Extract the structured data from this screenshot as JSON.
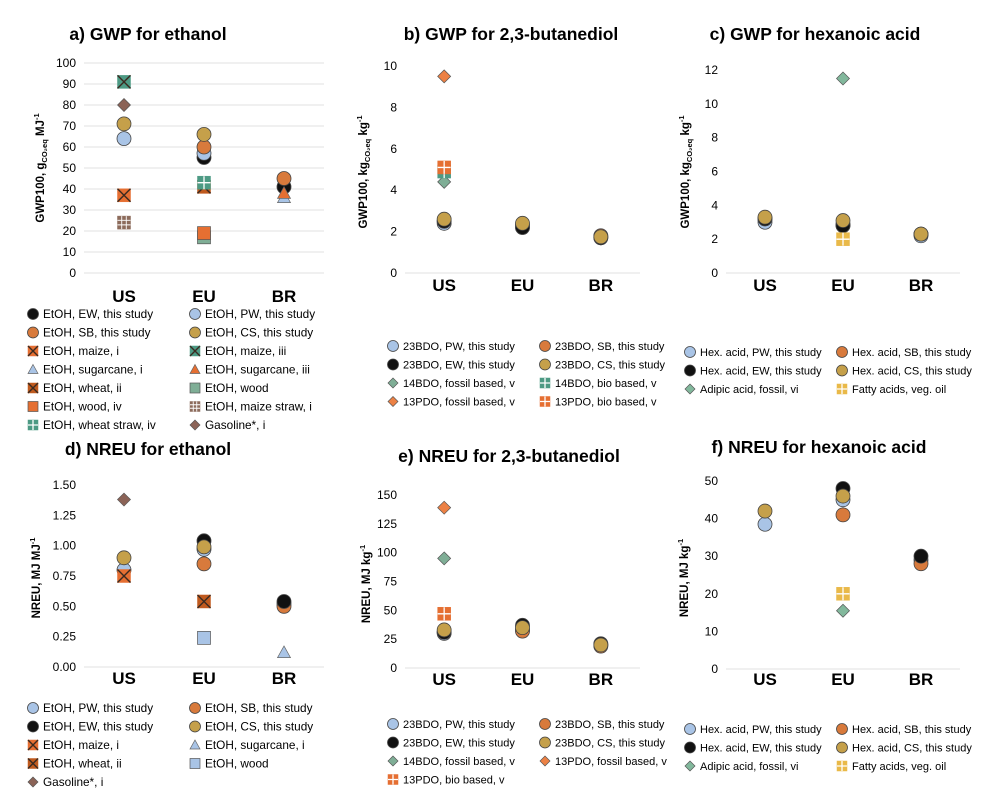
{
  "colors": {
    "EW": "#111111",
    "PW": "#a9c4e6",
    "SB": "#d87a3c",
    "CS": "#c5a04a",
    "orange": "#e56f32",
    "teal": "#4d9a84",
    "lightblue": "#a9c4e6",
    "brown": "#8c6b5b",
    "diamond_fossil": "#7fae96",
    "pdo_fossil": "#ec8145",
    "gasoline": "#8b6357",
    "adipic": "#82b89c",
    "fattyacid": "#e9b949"
  },
  "chart_data": [
    {
      "id": "a",
      "type": "scatter",
      "title": "a) GWP for ethanol",
      "ylabel_main": "GWP100, g",
      "ylabel_sub": "CO₂eq",
      "ylabel_unit": " MJ",
      "ylabel_sup": "-1",
      "categories": [
        "US",
        "EU",
        "BR"
      ],
      "ylim": [
        0,
        100
      ],
      "yticks": [
        0,
        10,
        20,
        30,
        40,
        50,
        60,
        70,
        80,
        90,
        100
      ],
      "tick_decimals": 0,
      "grid": true,
      "series": [
        {
          "name": "EtOH, EW, this study",
          "marker": "circle",
          "color": "#111111",
          "values": [
            null,
            55,
            41
          ]
        },
        {
          "name": "EtOH, PW, this study",
          "marker": "circle",
          "color": "#a9c4e6",
          "values": [
            64,
            57,
            null
          ]
        },
        {
          "name": "EtOH, SB, this study",
          "marker": "circle",
          "color": "#d87a3c",
          "values": [
            null,
            60,
            45
          ]
        },
        {
          "name": "EtOH, CS, this study",
          "marker": "circle",
          "color": "#c5a04a",
          "values": [
            71,
            66,
            null
          ]
        },
        {
          "name": "EtOH, maize, i",
          "marker": "xbox",
          "color": "#e56f32",
          "values": [
            37,
            null,
            null
          ]
        },
        {
          "name": "EtOH, maize, iii",
          "marker": "xbox",
          "color": "#4d9a84",
          "values": [
            91,
            null,
            null
          ]
        },
        {
          "name": "EtOH, sugarcane, i",
          "marker": "triangle",
          "color": "#a9c4e6",
          "values": [
            null,
            null,
            36
          ]
        },
        {
          "name": "EtOH, sugarcane, iii",
          "marker": "triangle",
          "color": "#e56f32",
          "values": [
            null,
            41,
            38
          ]
        },
        {
          "name": "EtOH, wheat, ii",
          "marker": "xbox",
          "color": "#c05a1e",
          "values": [
            null,
            41,
            null
          ]
        },
        {
          "name": "EtOH, wood",
          "marker": "square",
          "color": "#7fae96",
          "values": [
            null,
            17,
            null
          ]
        },
        {
          "name": "EtOH, wood, iv",
          "marker": "square",
          "color": "#e56f32",
          "values": [
            null,
            19,
            null
          ]
        },
        {
          "name": "EtOH, maize straw, i",
          "marker": "hash",
          "color": "#8c6b5b",
          "values": [
            24,
            null,
            null
          ]
        },
        {
          "name": "EtOH, wheat straw, iv",
          "marker": "plus",
          "color": "#4d9a84",
          "values": [
            null,
            43,
            null
          ]
        },
        {
          "name": "Gasoline*, i",
          "marker": "diamond",
          "color": "#8b6357",
          "values": [
            80,
            null,
            null
          ]
        }
      ],
      "legend_order": [
        0,
        1,
        2,
        3,
        4,
        5,
        6,
        7,
        8,
        9,
        10,
        11,
        12,
        13
      ]
    },
    {
      "id": "b",
      "type": "scatter",
      "title": "b) GWP for 2,3-butanediol",
      "ylabel_main": "GWP100, kg",
      "ylabel_sub": "CO₂eq",
      "ylabel_unit": " kg",
      "ylabel_sup": "-1",
      "categories": [
        "US",
        "EU",
        "BR"
      ],
      "ylim": [
        0,
        10
      ],
      "yticks": [
        0,
        2,
        4,
        6,
        8,
        10
      ],
      "tick_decimals": 0,
      "grid": false,
      "series": [
        {
          "name": "23BDO, PW, this study",
          "marker": "circle",
          "color": "#a9c4e6",
          "values": [
            2.4,
            2.2,
            1.7
          ]
        },
        {
          "name": "23BDO, SB, this study",
          "marker": "circle",
          "color": "#d87a3c",
          "values": [
            2.5,
            2.3,
            1.8
          ]
        },
        {
          "name": "23BDO, EW, this study",
          "marker": "circle",
          "color": "#111111",
          "values": [
            2.5,
            2.2,
            1.7
          ]
        },
        {
          "name": "23BDO, CS, this study",
          "marker": "circle",
          "color": "#c5a04a",
          "values": [
            2.6,
            2.4,
            1.75
          ]
        },
        {
          "name": "14BDO, fossil based, v",
          "marker": "diamond",
          "color": "#7fae96",
          "values": [
            4.4,
            null,
            null
          ]
        },
        {
          "name": "14BDO, bio based, v",
          "marker": "plus",
          "color": "#4d9a84",
          "values": [
            4.9,
            null,
            null
          ]
        },
        {
          "name": "13PDO, fossil based, v",
          "marker": "diamond",
          "color": "#ec8145",
          "values": [
            9.5,
            null,
            null
          ]
        },
        {
          "name": "13PDO, bio based, v",
          "marker": "plus",
          "color": "#e56f32",
          "values": [
            5.1,
            null,
            null
          ]
        }
      ],
      "legend_order": [
        0,
        1,
        2,
        3,
        4,
        5,
        6,
        7
      ]
    },
    {
      "id": "c",
      "type": "scatter",
      "title": "c) GWP for hexanoic acid",
      "ylabel_main": "GWP100, kg",
      "ylabel_sub": "CO₂eq",
      "ylabel_unit": " kg",
      "ylabel_sup": "-1",
      "categories": [
        "US",
        "EU",
        "BR"
      ],
      "ylim": [
        0,
        12
      ],
      "yticks": [
        0,
        2,
        4,
        6,
        8,
        10,
        12
      ],
      "tick_decimals": 0,
      "grid": false,
      "series": [
        {
          "name": "Hex. acid, PW, this study",
          "marker": "circle",
          "color": "#a9c4e6",
          "values": [
            3.0,
            2.8,
            2.2
          ]
        },
        {
          "name": "Hex. acid, SB, this study",
          "marker": "circle",
          "color": "#d87a3c",
          "values": [
            3.2,
            2.9,
            2.3
          ]
        },
        {
          "name": "Hex. acid, EW, this study",
          "marker": "circle",
          "color": "#111111",
          "values": [
            3.2,
            2.8,
            2.3
          ]
        },
        {
          "name": "Hex. acid, CS, this study",
          "marker": "circle",
          "color": "#c5a04a",
          "values": [
            3.3,
            3.1,
            2.3
          ]
        },
        {
          "name": "Adipic acid, fossil, vi",
          "marker": "diamond",
          "color": "#82b89c",
          "values": [
            null,
            11.5,
            null
          ]
        },
        {
          "name": "Fatty acids, veg. oil",
          "marker": "plus",
          "color": "#e9b949",
          "values": [
            null,
            2.0,
            null
          ]
        }
      ],
      "legend_order": [
        0,
        1,
        2,
        3,
        4,
        5
      ]
    },
    {
      "id": "d",
      "type": "scatter",
      "title": "d) NREU for ethanol",
      "ylabel_main": "NREU, MJ MJ",
      "ylabel_sub": "",
      "ylabel_unit": "",
      "ylabel_sup": "-1",
      "categories": [
        "US",
        "EU",
        "BR"
      ],
      "ylim": [
        0,
        1.5
      ],
      "yticks": [
        0,
        0.25,
        0.5,
        0.75,
        1.0,
        1.25,
        1.5
      ],
      "tick_decimals": 2,
      "grid": false,
      "series": [
        {
          "name": "EtOH, PW, this study",
          "marker": "circle",
          "color": "#a9c4e6",
          "values": [
            0.8,
            0.97,
            0.52
          ]
        },
        {
          "name": "EtOH, SB, this study",
          "marker": "circle",
          "color": "#d87a3c",
          "values": [
            null,
            0.85,
            0.5
          ]
        },
        {
          "name": "EtOH, EW, this study",
          "marker": "circle",
          "color": "#111111",
          "values": [
            null,
            1.04,
            0.54
          ]
        },
        {
          "name": "EtOH, CS, this study",
          "marker": "circle",
          "color": "#c5a04a",
          "values": [
            0.9,
            0.99,
            null
          ]
        },
        {
          "name": "EtOH, maize, i",
          "marker": "xbox",
          "color": "#e56f32",
          "values": [
            0.75,
            null,
            null
          ]
        },
        {
          "name": "EtOH, sugarcane, i",
          "marker": "triangle",
          "color": "#a9c4e6",
          "values": [
            null,
            null,
            0.12
          ]
        },
        {
          "name": "EtOH, wheat, ii",
          "marker": "xbox",
          "color": "#c05a1e",
          "values": [
            null,
            0.54,
            null
          ]
        },
        {
          "name": "EtOH, wood",
          "marker": "square",
          "color": "#a9c4e6",
          "values": [
            null,
            0.24,
            null
          ]
        },
        {
          "name": "Gasoline*, i",
          "marker": "diamond",
          "color": "#8b6357",
          "values": [
            1.38,
            null,
            null
          ]
        }
      ],
      "legend_order": [
        0,
        1,
        2,
        3,
        4,
        5,
        6,
        7,
        8
      ]
    },
    {
      "id": "e",
      "type": "scatter",
      "title": "e) NREU for 2,3-butanediol",
      "ylabel_main": "NREU, MJ kg",
      "ylabel_sub": "",
      "ylabel_unit": "",
      "ylabel_sup": "-1",
      "categories": [
        "US",
        "EU",
        "BR"
      ],
      "ylim": [
        0,
        150
      ],
      "yticks": [
        0,
        25,
        50,
        75,
        100,
        125,
        150
      ],
      "tick_decimals": 0,
      "grid": false,
      "series": [
        {
          "name": "23BDO, PW, this study",
          "marker": "circle",
          "color": "#a9c4e6",
          "values": [
            30,
            33,
            20
          ]
        },
        {
          "name": "23BDO, SB, this study",
          "marker": "circle",
          "color": "#d87a3c",
          "values": [
            31,
            32,
            19
          ]
        },
        {
          "name": "23BDO, EW, this study",
          "marker": "circle",
          "color": "#111111",
          "values": [
            31,
            37,
            21
          ]
        },
        {
          "name": "23BDO, CS, this study",
          "marker": "circle",
          "color": "#c5a04a",
          "values": [
            33,
            35,
            20
          ]
        },
        {
          "name": "14BDO, fossil based, v",
          "marker": "diamond",
          "color": "#7fae96",
          "values": [
            95,
            null,
            null
          ]
        },
        {
          "name": "13PDO, fossil based, v",
          "marker": "diamond",
          "color": "#ec8145",
          "values": [
            139,
            null,
            null
          ]
        },
        {
          "name": "13PDO, bio based, v",
          "marker": "plus",
          "color": "#e56f32",
          "values": [
            47,
            null,
            null
          ]
        }
      ],
      "legend_order": [
        0,
        1,
        2,
        3,
        4,
        5,
        6
      ]
    },
    {
      "id": "f",
      "type": "scatter",
      "title": "f) NREU for hexanoic acid",
      "ylabel_main": "NREU, MJ kg",
      "ylabel_sub": "",
      "ylabel_unit": "",
      "ylabel_sup": "-1",
      "categories": [
        "US",
        "EU",
        "BR"
      ],
      "ylim": [
        0,
        50
      ],
      "yticks": [
        0,
        10,
        20,
        30,
        40,
        50
      ],
      "tick_decimals": 0,
      "grid": false,
      "series": [
        {
          "name": "Hex. acid, PW, this study",
          "marker": "circle",
          "color": "#a9c4e6",
          "values": [
            38.5,
            45,
            29
          ]
        },
        {
          "name": "Hex. acid, SB, this study",
          "marker": "circle",
          "color": "#d87a3c",
          "values": [
            null,
            41,
            28
          ]
        },
        {
          "name": "Hex. acid, EW, this study",
          "marker": "circle",
          "color": "#111111",
          "values": [
            null,
            48,
            30
          ]
        },
        {
          "name": "Hex. acid, CS, this study",
          "marker": "circle",
          "color": "#c5a04a",
          "values": [
            42,
            46,
            null
          ]
        },
        {
          "name": "Adipic acid, fossil, vi",
          "marker": "diamond",
          "color": "#82b89c",
          "values": [
            null,
            15.5,
            null
          ]
        },
        {
          "name": "Fatty acids, veg. oil",
          "marker": "plus",
          "color": "#e9b949",
          "values": [
            null,
            20,
            null
          ]
        }
      ],
      "legend_order": [
        0,
        1,
        2,
        3,
        4,
        5
      ]
    }
  ]
}
